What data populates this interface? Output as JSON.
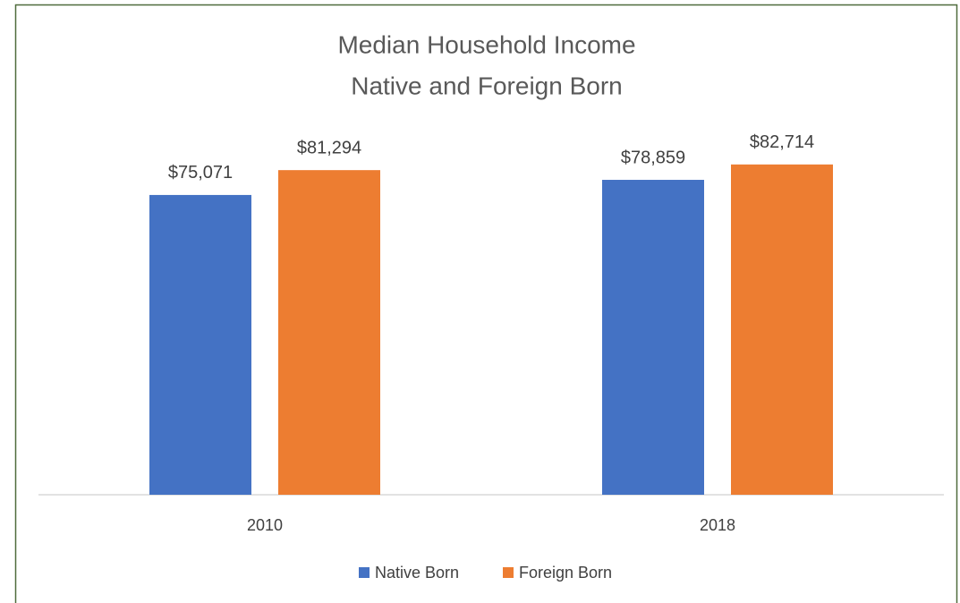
{
  "chart_data": {
    "type": "bar",
    "title": "Median Household Income",
    "subtitle": "Native and Foreign Born",
    "categories": [
      "2010",
      "2018"
    ],
    "series": [
      {
        "name": "Native Born",
        "color": "#4472c4",
        "values": [
          75071,
          78859
        ],
        "value_labels": [
          "$75,071",
          "$78,859"
        ]
      },
      {
        "name": "Foreign Born",
        "color": "#ed7d31",
        "values": [
          81294,
          82714
        ],
        "value_labels": [
          "$81,294",
          "$82,714"
        ]
      }
    ],
    "ylim": [
      0,
      90000
    ],
    "legend": "bottom"
  }
}
